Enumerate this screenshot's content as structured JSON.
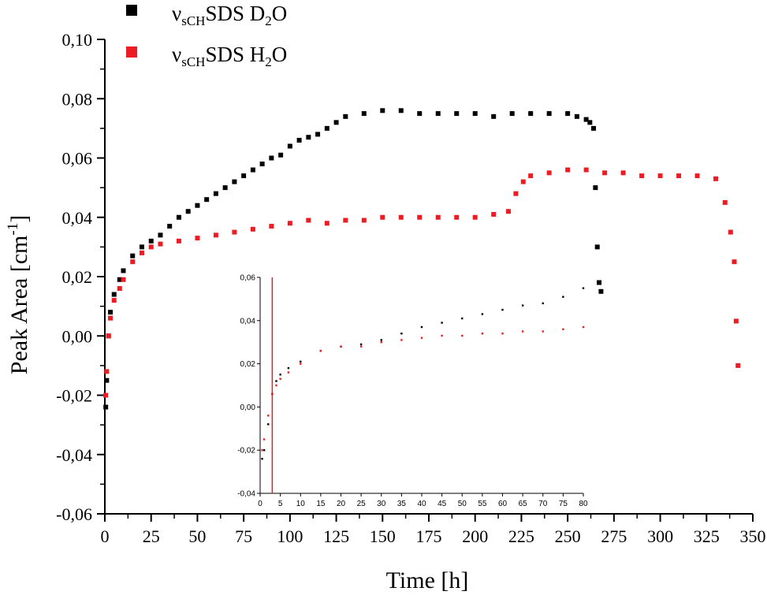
{
  "chart_data": [
    {
      "type": "scatter",
      "xlabel": "Time [h]",
      "ylabel": "Peak Area [cm",
      "ylabel_sup": "-1",
      "ylabel_tail": "]",
      "xlim": [
        0,
        350
      ],
      "ylim": [
        -0.06,
        0.1
      ],
      "x_ticks": [
        0,
        25,
        50,
        75,
        100,
        125,
        150,
        175,
        200,
        225,
        250,
        275,
        300,
        325,
        350
      ],
      "y_ticks": [
        -0.06,
        -0.04,
        -0.02,
        0.0,
        0.02,
        0.04,
        0.06,
        0.08,
        0.1
      ],
      "x_tick_labels": [
        "0",
        "25",
        "50",
        "75",
        "100",
        "125",
        "150",
        "175",
        "200",
        "225",
        "250",
        "275",
        "300",
        "325",
        "350"
      ],
      "y_tick_labels": [
        "-0,06",
        "-0,04",
        "-0,02",
        "0,00",
        "0,02",
        "0,04",
        "0,06",
        "0,08",
        "0,10"
      ],
      "grid": false,
      "legend_position": "top-left",
      "series": [
        {
          "name_prefix": "ν",
          "name_sub": "sCH",
          "name_mid": "SDS D",
          "name_sub2": "2",
          "name_tail": "O",
          "color": "#000000",
          "marker": "square",
          "x": [
            0.5,
            1,
            2,
            3,
            5,
            8,
            10,
            15,
            20,
            25,
            30,
            35,
            40,
            45,
            50,
            55,
            60,
            65,
            70,
            75,
            80,
            85,
            90,
            95,
            100,
            105,
            110,
            115,
            120,
            125,
            130,
            140,
            150,
            160,
            170,
            180,
            190,
            200,
            210,
            220,
            230,
            240,
            250,
            255,
            260,
            262,
            264,
            265,
            266,
            267,
            268
          ],
          "y": [
            -0.024,
            -0.015,
            0.0,
            0.008,
            0.014,
            0.019,
            0.022,
            0.027,
            0.03,
            0.032,
            0.034,
            0.037,
            0.04,
            0.042,
            0.044,
            0.046,
            0.048,
            0.05,
            0.052,
            0.054,
            0.056,
            0.058,
            0.06,
            0.061,
            0.064,
            0.066,
            0.067,
            0.068,
            0.07,
            0.072,
            0.074,
            0.075,
            0.076,
            0.076,
            0.075,
            0.075,
            0.075,
            0.075,
            0.074,
            0.075,
            0.075,
            0.075,
            0.075,
            0.074,
            0.073,
            0.072,
            0.07,
            0.05,
            0.03,
            0.018,
            0.015
          ]
        },
        {
          "name_prefix": "ν",
          "name_sub": "sCH",
          "name_mid": "SDS H",
          "name_sub2": "2",
          "name_tail": "O",
          "color": "#ed1c24",
          "marker": "square",
          "x": [
            0.5,
            1,
            2,
            3,
            5,
            8,
            10,
            15,
            20,
            25,
            30,
            40,
            50,
            60,
            70,
            80,
            90,
            100,
            110,
            120,
            130,
            140,
            150,
            160,
            170,
            180,
            190,
            200,
            210,
            218,
            222,
            226,
            230,
            240,
            250,
            260,
            270,
            280,
            290,
            300,
            310,
            320,
            330,
            335,
            338,
            340,
            341,
            342
          ],
          "y": [
            -0.02,
            -0.012,
            0.0,
            0.006,
            0.012,
            0.016,
            0.019,
            0.025,
            0.028,
            0.03,
            0.031,
            0.032,
            0.033,
            0.034,
            0.035,
            0.036,
            0.037,
            0.038,
            0.039,
            0.038,
            0.039,
            0.039,
            0.04,
            0.04,
            0.04,
            0.04,
            0.04,
            0.04,
            0.041,
            0.042,
            0.048,
            0.052,
            0.054,
            0.055,
            0.056,
            0.056,
            0.055,
            0.055,
            0.054,
            0.054,
            0.054,
            0.054,
            0.053,
            0.045,
            0.035,
            0.025,
            0.005,
            -0.01
          ]
        }
      ]
    },
    {
      "type": "scatter",
      "position": "inset",
      "xlim": [
        0,
        80
      ],
      "ylim": [
        -0.04,
        0.06
      ],
      "x_ticks": [
        0,
        5,
        10,
        15,
        20,
        25,
        30,
        35,
        40,
        45,
        50,
        55,
        60,
        65,
        70,
        75,
        80
      ],
      "y_ticks": [
        -0.04,
        -0.02,
        0.0,
        0.02,
        0.04,
        0.06
      ],
      "x_tick_labels": [
        "0",
        "5",
        "10",
        "15",
        "20",
        "25",
        "30",
        "35",
        "40",
        "45",
        "50",
        "55",
        "60",
        "65",
        "70",
        "75",
        "80"
      ],
      "y_tick_labels": [
        "-0,04",
        "-0,02",
        "0,00",
        "0,02",
        "0,04",
        "0,06"
      ],
      "marker_line_x": 3,
      "marker_line_color": "#ed1c24",
      "series": [
        {
          "color": "#000000",
          "x": [
            0.5,
            1,
            2,
            3,
            4,
            5,
            7,
            10,
            15,
            20,
            25,
            30,
            35,
            40,
            45,
            50,
            55,
            60,
            65,
            70,
            75,
            80
          ],
          "y": [
            -0.024,
            -0.02,
            -0.008,
            0.006,
            0.012,
            0.015,
            0.018,
            0.021,
            0.026,
            0.028,
            0.029,
            0.031,
            0.034,
            0.037,
            0.039,
            0.041,
            0.043,
            0.045,
            0.047,
            0.048,
            0.051,
            0.055
          ]
        },
        {
          "color": "#ed1c24",
          "x": [
            0.5,
            1,
            2,
            3,
            4,
            5,
            7,
            10,
            15,
            20,
            25,
            30,
            35,
            40,
            45,
            50,
            55,
            60,
            65,
            70,
            75,
            80
          ],
          "y": [
            -0.02,
            -0.015,
            -0.004,
            0.006,
            0.01,
            0.013,
            0.016,
            0.02,
            0.026,
            0.028,
            0.028,
            0.03,
            0.031,
            0.032,
            0.033,
            0.033,
            0.034,
            0.034,
            0.035,
            0.035,
            0.036,
            0.037
          ]
        }
      ]
    }
  ]
}
